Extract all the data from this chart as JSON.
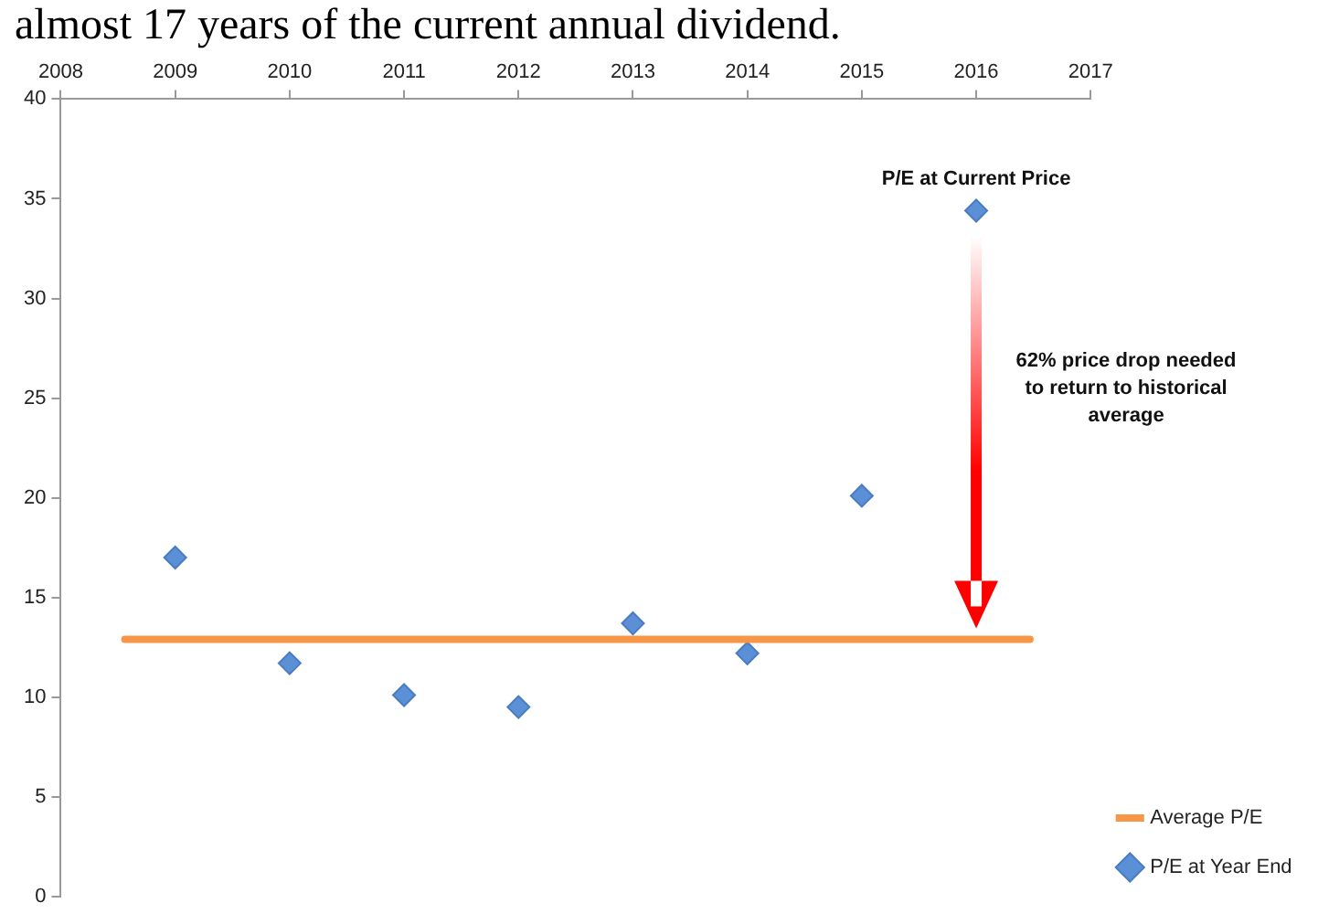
{
  "chart_data": {
    "type": "scatter",
    "annotations": [
      "almost 17 years of the current annual dividend.",
      {
        "text": "P/E at Current Price",
        "x": 2016,
        "y": 34.4
      },
      "62% price drop needed to return to historical average"
    ],
    "xlim": [
      2008,
      2017
    ],
    "xticks": [
      2008,
      2009,
      2010,
      2011,
      2012,
      2013,
      2014,
      2015,
      2016,
      2017
    ],
    "ylim": [
      0,
      40
    ],
    "yticks": [
      0,
      5,
      10,
      15,
      20,
      25,
      30,
      35,
      40
    ],
    "grid": false,
    "legend": "bottom right",
    "series": [
      {
        "name": "Average P/E",
        "type": "line",
        "color": "#f79646",
        "x": [
          2008.56,
          2016.47
        ],
        "values": [
          12.9,
          12.9
        ]
      },
      {
        "name": "P/E at Year End",
        "marker": "diamond",
        "color": "#5b8fd6",
        "x": [
          2009,
          2010,
          2011,
          2012,
          2013,
          2014,
          2015,
          2016
        ],
        "values": [
          17.0,
          11.7,
          10.1,
          9.5,
          13.7,
          12.2,
          20.1,
          34.4
        ]
      }
    ]
  }
}
